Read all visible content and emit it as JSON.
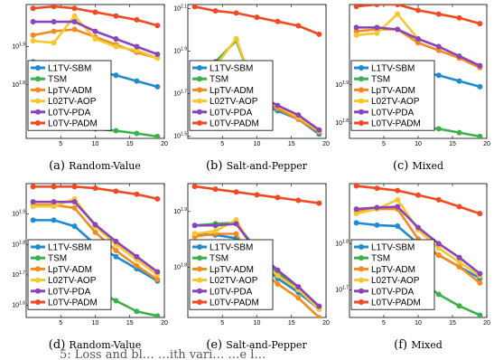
{
  "chart_data": [
    {
      "panel": "(a)",
      "name": "Random-Value",
      "type": "line",
      "ylog": true,
      "x": [
        1,
        4,
        7,
        10,
        13,
        16,
        19
      ],
      "xticks": [
        5,
        10,
        15,
        20
      ],
      "xlim": [
        0,
        20
      ],
      "yticks": [
        {
          "label": "10",
          "exp": "1.9"
        },
        {
          "label": "10",
          "exp": "1.8"
        }
      ],
      "ylim": [
        1.66,
        2.01
      ],
      "series": [
        {
          "name": "L1TV-SBM",
          "color": "#1f8bd0",
          "values": [
            1.86,
            1.855,
            1.845,
            1.835,
            1.825,
            1.81,
            1.795
          ]
        },
        {
          "name": "TSM",
          "color": "#3cb04a",
          "values": [
            1.705,
            1.695,
            1.69,
            1.685,
            1.68,
            1.673,
            1.665
          ]
        },
        {
          "name": "LpTV-ADM",
          "color": "#f58a1f",
          "values": [
            1.93,
            1.94,
            1.945,
            1.925,
            1.905,
            1.885,
            1.87
          ]
        },
        {
          "name": "L02TV-AOP",
          "color": "#f5c830",
          "values": [
            1.915,
            1.91,
            1.98,
            1.92,
            1.9,
            1.89,
            1.87
          ]
        },
        {
          "name": "L0TV-PDA",
          "color": "#8a45b8",
          "values": [
            1.965,
            1.965,
            1.965,
            1.94,
            1.92,
            1.9,
            1.88
          ]
        },
        {
          "name": "L0TV-PADM",
          "color": "#f04a23",
          "values": [
            2.0,
            2.005,
            2.0,
            1.99,
            1.98,
            1.97,
            1.955
          ]
        }
      ]
    },
    {
      "panel": "(b)",
      "name": "Salt-and-Pepper",
      "type": "line",
      "ylog": true,
      "x": [
        1,
        4,
        7,
        10,
        13,
        16,
        19
      ],
      "xticks": [
        5,
        10,
        15,
        20
      ],
      "xlim": [
        0,
        20
      ],
      "yticks": [
        {
          "label": "10",
          "exp": "2.1"
        },
        {
          "label": "10",
          "exp": "1.9"
        },
        {
          "label": "10",
          "exp": "1.7"
        },
        {
          "label": "10",
          "exp": "1.5"
        }
      ],
      "ylim": [
        1.49,
        2.12
      ],
      "series": [
        {
          "name": "L1TV-SBM",
          "color": "#1f8bd0",
          "values": [
            1.79,
            1.79,
            1.75,
            1.66,
            1.62,
            1.58,
            1.51
          ]
        },
        {
          "name": "TSM",
          "color": "#3cb04a",
          "values": [
            1.83,
            1.85,
            1.95,
            1.69,
            1.63,
            1.59,
            1.52
          ]
        },
        {
          "name": "LpTV-ADM",
          "color": "#f58a1f",
          "values": [
            1.8,
            1.81,
            1.82,
            1.68,
            1.63,
            1.58,
            1.52
          ]
        },
        {
          "name": "L02TV-AOP",
          "color": "#f5c830",
          "values": [
            1.82,
            1.83,
            1.96,
            1.69,
            1.64,
            1.59,
            1.525
          ]
        },
        {
          "name": "L0TV-PDA",
          "color": "#8a45b8",
          "values": [
            1.84,
            1.85,
            1.84,
            1.7,
            1.645,
            1.6,
            1.53
          ]
        },
        {
          "name": "L0TV-PADM",
          "color": "#f04a23",
          "values": [
            2.11,
            2.09,
            2.08,
            2.06,
            2.04,
            2.02,
            1.98
          ]
        }
      ]
    },
    {
      "panel": "(c)",
      "name": "Mixed",
      "type": "line",
      "ylog": true,
      "x": [
        1,
        4,
        7,
        10,
        13,
        16,
        19
      ],
      "xticks": [
        5,
        10,
        15,
        20
      ],
      "xlim": [
        0,
        20
      ],
      "yticks": [
        {
          "label": "10",
          "exp": "1.9"
        },
        {
          "label": "10",
          "exp": "1.8"
        }
      ],
      "ylim": [
        1.76,
        2.11
      ],
      "series": [
        {
          "name": "L1TV-SBM",
          "color": "#1f8bd0",
          "values": [
            1.955,
            1.95,
            1.945,
            1.935,
            1.925,
            1.91,
            1.895
          ]
        },
        {
          "name": "TSM",
          "color": "#3cb04a",
          "values": [
            1.83,
            1.81,
            1.805,
            1.79,
            1.785,
            1.775,
            1.765
          ]
        },
        {
          "name": "LpTV-ADM",
          "color": "#f58a1f",
          "values": [
            2.04,
            2.045,
            2.045,
            2.01,
            1.99,
            1.97,
            1.945
          ]
        },
        {
          "name": "L02TV-AOP",
          "color": "#f5c830",
          "values": [
            2.03,
            2.035,
            2.085,
            2.02,
            2.0,
            1.975,
            1.95
          ]
        },
        {
          "name": "L0TV-PDA",
          "color": "#8a45b8",
          "values": [
            2.05,
            2.05,
            2.045,
            2.02,
            2.0,
            1.975,
            1.95
          ]
        },
        {
          "name": "L0TV-PADM",
          "color": "#f04a23",
          "values": [
            2.105,
            2.11,
            2.11,
            2.095,
            2.085,
            2.075,
            2.06
          ]
        }
      ]
    },
    {
      "panel": "(d)",
      "name": "Random-Value",
      "type": "line",
      "ylog": true,
      "x": [
        1,
        4,
        7,
        10,
        13,
        16,
        19
      ],
      "xticks": [
        5,
        10,
        15,
        20
      ],
      "xlim": [
        0,
        20
      ],
      "yticks": [
        {
          "label": "10",
          "exp": "1.9"
        },
        {
          "label": "10",
          "exp": "1.8"
        },
        {
          "label": "10",
          "exp": "1.7"
        },
        {
          "label": "10",
          "exp": "1.6"
        }
      ],
      "ylim": [
        1.56,
        2.0
      ],
      "series": [
        {
          "name": "L1TV-SBM",
          "color": "#1f8bd0",
          "values": [
            1.88,
            1.88,
            1.86,
            1.8,
            1.76,
            1.72,
            1.68
          ]
        },
        {
          "name": "TSM",
          "color": "#3cb04a",
          "values": [
            1.72,
            1.7,
            1.68,
            1.65,
            1.615,
            1.58,
            1.565
          ]
        },
        {
          "name": "LpTV-ADM",
          "color": "#f58a1f",
          "values": [
            1.93,
            1.93,
            1.92,
            1.84,
            1.78,
            1.73,
            1.685
          ]
        },
        {
          "name": "L02TV-AOP",
          "color": "#f5c830",
          "values": [
            1.925,
            1.925,
            1.95,
            1.86,
            1.8,
            1.75,
            1.7
          ]
        },
        {
          "name": "L0TV-PDA",
          "color": "#8a45b8",
          "values": [
            1.94,
            1.94,
            1.94,
            1.865,
            1.81,
            1.76,
            1.71
          ]
        },
        {
          "name": "L0TV-PADM",
          "color": "#f04a23",
          "values": [
            1.99,
            1.99,
            1.99,
            1.985,
            1.975,
            1.965,
            1.95
          ]
        }
      ]
    },
    {
      "panel": "(e)",
      "name": "Salt-and-Pepper",
      "type": "line",
      "ylog": true,
      "x": [
        1,
        4,
        7,
        10,
        13,
        16,
        19
      ],
      "xticks": [
        5,
        10,
        15,
        20
      ],
      "xlim": [
        0,
        20
      ],
      "yticks": [
        {
          "label": "10",
          "exp": "1.9"
        },
        {
          "label": "10",
          "exp": "1.8"
        }
      ],
      "ylim": [
        1.71,
        1.95
      ],
      "series": [
        {
          "name": "L1TV-SBM",
          "color": "#1f8bd0",
          "values": [
            1.86,
            1.858,
            1.852,
            1.81,
            1.78,
            1.755,
            1.725
          ]
        },
        {
          "name": "TSM",
          "color": "#3cb04a",
          "values": [
            1.875,
            1.878,
            1.88,
            1.83,
            1.79,
            1.76,
            1.73
          ]
        },
        {
          "name": "LpTV-ADM",
          "color": "#f58a1f",
          "values": [
            1.855,
            1.86,
            1.86,
            1.8,
            1.77,
            1.745,
            1.71
          ]
        },
        {
          "name": "L02TV-AOP",
          "color": "#f5c830",
          "values": [
            1.86,
            1.865,
            1.885,
            1.82,
            1.785,
            1.76,
            1.725
          ]
        },
        {
          "name": "L0TV-PDA",
          "color": "#8a45b8",
          "values": [
            1.875,
            1.875,
            1.878,
            1.828,
            1.795,
            1.765,
            1.73
          ]
        },
        {
          "name": "L0TV-PADM",
          "color": "#f04a23",
          "values": [
            1.945,
            1.94,
            1.935,
            1.93,
            1.925,
            1.92,
            1.915
          ]
        }
      ]
    },
    {
      "panel": "(f)",
      "name": "Mixed",
      "type": "line",
      "ylog": true,
      "x": [
        1,
        4,
        7,
        10,
        13,
        16,
        19
      ],
      "xticks": [
        5,
        10,
        15,
        20
      ],
      "xlim": [
        0,
        20
      ],
      "yticks": [
        {
          "label": "10",
          "exp": "1.8"
        },
        {
          "label": "10",
          "exp": "1.7"
        }
      ],
      "ylim": [
        1.64,
        1.93
      ],
      "series": [
        {
          "name": "L1TV-SBM",
          "color": "#1f8bd0",
          "values": [
            1.845,
            1.84,
            1.838,
            1.8,
            1.775,
            1.75,
            1.725
          ]
        },
        {
          "name": "TSM",
          "color": "#3cb04a",
          "values": [
            1.79,
            1.775,
            1.76,
            1.725,
            1.69,
            1.665,
            1.645
          ]
        },
        {
          "name": "LpTV-ADM",
          "color": "#f58a1f",
          "values": [
            1.87,
            1.875,
            1.875,
            1.81,
            1.775,
            1.75,
            1.715
          ]
        },
        {
          "name": "L02TV-AOP",
          "color": "#f5c830",
          "values": [
            1.865,
            1.875,
            1.895,
            1.83,
            1.79,
            1.76,
            1.73
          ]
        },
        {
          "name": "L0TV-PDA",
          "color": "#8a45b8",
          "values": [
            1.875,
            1.878,
            1.88,
            1.835,
            1.8,
            1.77,
            1.735
          ]
        },
        {
          "name": "L0TV-PADM",
          "color": "#f04a23",
          "values": [
            1.925,
            1.92,
            1.915,
            1.905,
            1.895,
            1.88,
            1.865
          ]
        }
      ]
    }
  ],
  "captions": [
    {
      "letter": "(a)",
      "name": "Random-Value"
    },
    {
      "letter": "(b)",
      "name": "Salt-and-Pepper"
    },
    {
      "letter": "(c)",
      "name": "Mixed"
    },
    {
      "letter": "(d)",
      "name": "Random-Value"
    },
    {
      "letter": "(e)",
      "name": "Salt-and-Pepper"
    },
    {
      "letter": "(f)",
      "name": "Mixed"
    }
  ],
  "footer_text": "5: Loss and bl…  …ith vari… …e l…"
}
